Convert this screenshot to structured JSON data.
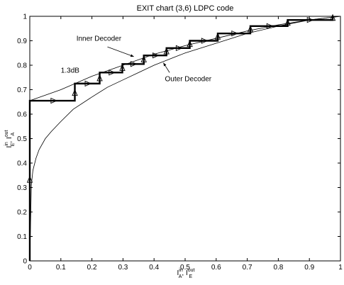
{
  "chart_data": {
    "type": "line",
    "title": "EXIT chart (3,6) LDPC code",
    "xlim": [
      0,
      1
    ],
    "ylim": [
      0,
      1
    ],
    "x_ticks": [
      0,
      0.1,
      0.2,
      0.3,
      0.4,
      0.5,
      0.6,
      0.7,
      0.8,
      0.9,
      1
    ],
    "y_ticks": [
      0,
      0.1,
      0.2,
      0.3,
      0.4,
      0.5,
      0.6,
      0.7,
      0.8,
      0.9,
      1
    ],
    "x_tick_labels": [
      "0",
      "0.1",
      "0.2",
      "0.3",
      "0.4",
      "0.5",
      "0.6",
      "0.7",
      "0.8",
      "0.9",
      "1"
    ],
    "y_tick_labels": [
      "0",
      "0.1",
      "0.2",
      "0.3",
      "0.4",
      "0.5",
      "0.6",
      "0.7",
      "0.8",
      "0.9",
      "1"
    ],
    "grid": false,
    "xlabel": {
      "main": "I",
      "sup1": "in",
      "sub1": "A",
      "spacer": ", I",
      "sup2": "out",
      "sub2": "E"
    },
    "ylabel": {
      "main": "I",
      "sup1": "in",
      "sub1": "E",
      "spacer": ", I",
      "sup2": "out",
      "sub2": "A"
    },
    "series": [
      {
        "style": "thin",
        "x": [
          0,
          0.005,
          0.01,
          0.02,
          0.03,
          0.05,
          0.07,
          0.1,
          0.14,
          0.2,
          0.25,
          0.3,
          0.35,
          0.4,
          0.5,
          0.6,
          0.7,
          0.8,
          0.9,
          1
        ],
        "y": [
          0,
          0.31,
          0.37,
          0.42,
          0.455,
          0.5,
          0.53,
          0.57,
          0.62,
          0.67,
          0.71,
          0.74,
          0.77,
          0.8,
          0.85,
          0.89,
          0.93,
          0.96,
          0.985,
          1
        ]
      },
      {
        "style": "thin",
        "x": [
          0,
          0.1,
          0.2,
          0.3,
          0.4,
          0.5,
          0.6,
          0.7,
          0.8,
          0.9,
          1
        ],
        "y": [
          0.655,
          0.7,
          0.755,
          0.8,
          0.845,
          0.88,
          0.91,
          0.94,
          0.965,
          0.985,
          1
        ]
      },
      {
        "style": "thick",
        "x": [
          0,
          0,
          0.145,
          0.145,
          0.225,
          0.225,
          0.298,
          0.298,
          0.367,
          0.367,
          0.44,
          0.44,
          0.515,
          0.515,
          0.605,
          0.605,
          0.71,
          0.71,
          0.83,
          0.83,
          0.975,
          0.975
        ],
        "y": [
          0,
          0.655,
          0.655,
          0.725,
          0.725,
          0.77,
          0.77,
          0.805,
          0.805,
          0.84,
          0.84,
          0.87,
          0.87,
          0.9,
          0.9,
          0.93,
          0.93,
          0.96,
          0.96,
          0.985,
          0.985,
          1
        ]
      }
    ],
    "arrow_markers": [
      {
        "x": 0,
        "y": 0.33,
        "dir": "up"
      },
      {
        "x": 0.075,
        "y": 0.655,
        "dir": "right"
      },
      {
        "x": 0.145,
        "y": 0.685,
        "dir": "up"
      },
      {
        "x": 0.185,
        "y": 0.725,
        "dir": "right"
      },
      {
        "x": 0.225,
        "y": 0.745,
        "dir": "up"
      },
      {
        "x": 0.262,
        "y": 0.77,
        "dir": "right"
      },
      {
        "x": 0.298,
        "y": 0.787,
        "dir": "up"
      },
      {
        "x": 0.332,
        "y": 0.805,
        "dir": "right"
      },
      {
        "x": 0.367,
        "y": 0.822,
        "dir": "up"
      },
      {
        "x": 0.403,
        "y": 0.84,
        "dir": "right"
      },
      {
        "x": 0.44,
        "y": 0.855,
        "dir": "up"
      },
      {
        "x": 0.478,
        "y": 0.87,
        "dir": "right"
      },
      {
        "x": 0.515,
        "y": 0.885,
        "dir": "up"
      },
      {
        "x": 0.56,
        "y": 0.9,
        "dir": "right"
      },
      {
        "x": 0.605,
        "y": 0.915,
        "dir": "up"
      },
      {
        "x": 0.657,
        "y": 0.93,
        "dir": "right"
      },
      {
        "x": 0.71,
        "y": 0.945,
        "dir": "up"
      },
      {
        "x": 0.77,
        "y": 0.96,
        "dir": "right"
      },
      {
        "x": 0.83,
        "y": 0.972,
        "dir": "up"
      },
      {
        "x": 0.9,
        "y": 0.985,
        "dir": "right"
      },
      {
        "x": 0.975,
        "y": 0.992,
        "dir": "up"
      }
    ],
    "annotations": [
      {
        "id": "inner-decoder",
        "text": "Inner Decoder",
        "x": 0.15,
        "y": 0.9,
        "arrow": {
          "from": [
            0.25,
            0.875
          ],
          "to": [
            0.335,
            0.835
          ]
        }
      },
      {
        "id": "outer-decoder",
        "text": "Outer Decoder",
        "x": 0.435,
        "y": 0.735,
        "arrow": {
          "from": [
            0.45,
            0.77
          ],
          "to": [
            0.43,
            0.81
          ]
        }
      },
      {
        "id": "snr-label",
        "text": "1.3dB",
        "x": 0.1,
        "y": 0.77
      }
    ]
  }
}
